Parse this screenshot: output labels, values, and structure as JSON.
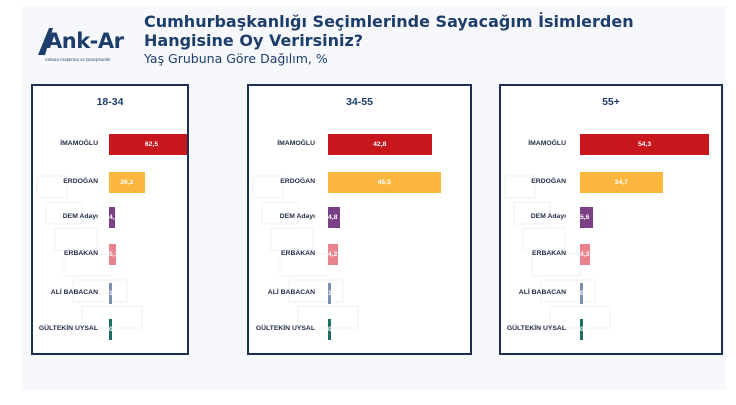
{
  "header": {
    "title_line1": "Cumhurbaşkanlığı Seçimlerinde Sayacağım İsimlerden",
    "title_line2": "Hangisine Oy Verirsiniz?",
    "subtitle": "Yaş Grubuna Göre Dağılım, %"
  },
  "logo": {
    "name": "Ank-Ar",
    "tagline": "Ankara Araştırma ve Danışmanlık",
    "color": "#1d3d6b"
  },
  "chart_data": [
    {
      "type": "bar",
      "orientation": "horizontal",
      "title": "18-34",
      "categories": [
        "İMAMOĞLU",
        "ERDOĞAN",
        "DEM Adayı",
        "ERBAKAN",
        "ALİ BABACAN",
        "GÜLTEKİN UYSAL"
      ],
      "values": [
        "62,5",
        "26,2",
        "4,5",
        "5,1",
        "1,6",
        "0,1"
      ],
      "colors": [
        "#c8161d",
        "#fbb63e",
        "#7b3f85",
        "#e9848f",
        "#7d8fb3",
        "#1d6f64"
      ]
    },
    {
      "type": "bar",
      "orientation": "horizontal",
      "title": "34-55",
      "categories": [
        "İMAMOĞLU",
        "ERDOĞAN",
        "DEM Adayı",
        "ERBAKAN",
        "ALİ BABACAN",
        "GÜLTEKİN UYSAL"
      ],
      "values": [
        "42,8",
        "46,5",
        "4,8",
        "4,2",
        "1,2",
        "0,5"
      ],
      "colors": [
        "#c8161d",
        "#fbb63e",
        "#7b3f85",
        "#e9848f",
        "#7d8fb3",
        "#1d6f64"
      ]
    },
    {
      "type": "bar",
      "orientation": "horizontal",
      "title": "55+",
      "categories": [
        "İMAMOĞLU",
        "ERDOĞAN",
        "DEM Adayı",
        "ERBAKAN",
        "ALİ BABACAN",
        "GÜLTEKİN UYSAL"
      ],
      "values": [
        "54,3",
        "34,7",
        "5,6",
        "4,3",
        "0,8",
        "0,3"
      ],
      "colors": [
        "#c8161d",
        "#fbb63e",
        "#7b3f85",
        "#e9848f",
        "#7d8fb3",
        "#1d6f64"
      ]
    }
  ]
}
